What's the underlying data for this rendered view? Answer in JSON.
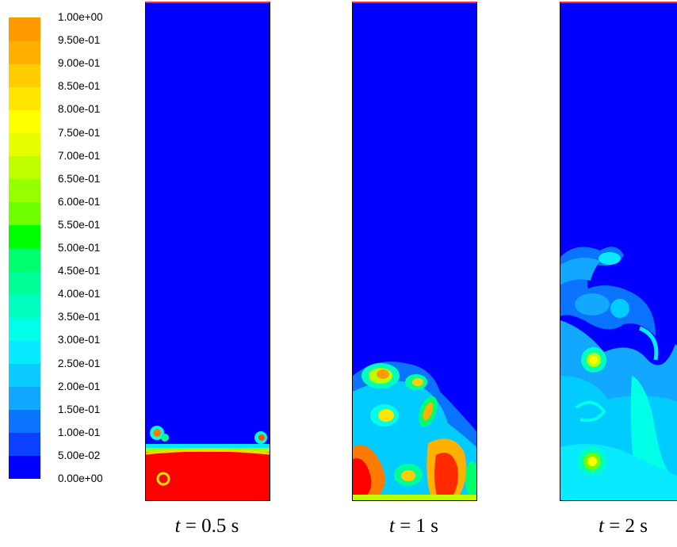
{
  "legend": {
    "colors": [
      "#0000ff",
      "#0b40ff",
      "#0a74ff",
      "#12a8ff",
      "#0ccbff",
      "#08eaff",
      "#00ffe6",
      "#00ffbe",
      "#00ff96",
      "#00ff6e",
      "#00ff00",
      "#6eff00",
      "#96ff00",
      "#beff00",
      "#e6ff00",
      "#ffff00",
      "#ffe600",
      "#ffcd00",
      "#ffb000",
      "#ff9900",
      "#ff7b00",
      "#ff5500",
      "#ff0000"
    ],
    "labels": [
      "0.00e+00",
      "5.00e-02",
      "1.00e-01",
      "1.50e-01",
      "2.00e-01",
      "2.50e-01",
      "3.00e-01",
      "3.50e-01",
      "4.00e-01",
      "4.50e-01",
      "5.00e-01",
      "5.50e-01",
      "6.00e-01",
      "6.50e-01",
      "7.00e-01",
      "7.50e-01",
      "8.00e-01",
      "8.50e-01",
      "9.00e-01",
      "9.50e-01",
      "1.00e+00"
    ]
  },
  "panels": [
    {
      "t_var": "t",
      "t_rest": " = 0.5 s"
    },
    {
      "t_var": "t",
      "t_rest": " = 1 s"
    },
    {
      "t_var": "t",
      "t_rest": " = 2 s"
    }
  ]
}
